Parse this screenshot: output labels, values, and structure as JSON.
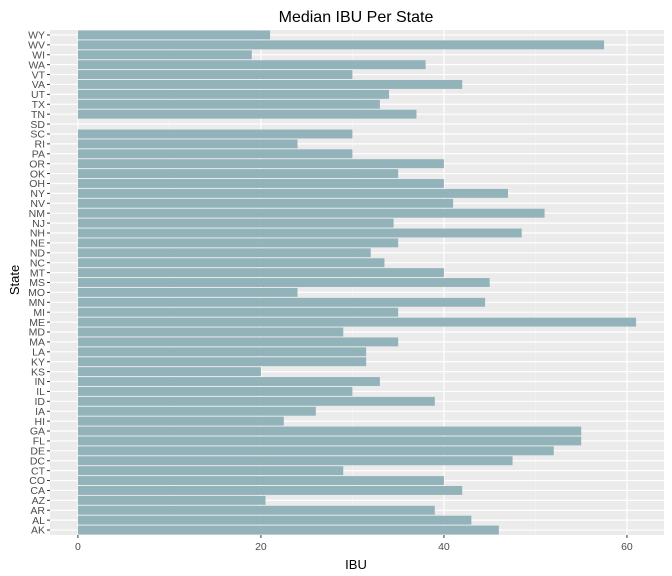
{
  "chart_data": {
    "type": "bar",
    "orientation": "horizontal",
    "title": "Median IBU Per State",
    "xlabel": "IBU",
    "ylabel": "State",
    "xlim": [
      -3.05,
      64.05
    ],
    "xticks": [
      0,
      20,
      40,
      60
    ],
    "grid": true,
    "legend": "none",
    "colors": {
      "bar": "#93b3ba",
      "panel": "#ebebeb",
      "grid_major": "#ffffff",
      "grid_minor": "#f5f5f5"
    },
    "categories": [
      "AK",
      "AL",
      "AR",
      "AZ",
      "CA",
      "CO",
      "CT",
      "DC",
      "DE",
      "FL",
      "GA",
      "HI",
      "IA",
      "ID",
      "IL",
      "IN",
      "KS",
      "KY",
      "LA",
      "MA",
      "MD",
      "ME",
      "MI",
      "MN",
      "MO",
      "MS",
      "MT",
      "NC",
      "ND",
      "NE",
      "NH",
      "NJ",
      "NM",
      "NV",
      "NY",
      "OH",
      "OK",
      "OR",
      "PA",
      "RI",
      "SC",
      "SD",
      "TN",
      "TX",
      "UT",
      "VA",
      "VT",
      "WA",
      "WI",
      "WV",
      "WY"
    ],
    "values": [
      46,
      43,
      39,
      20.5,
      42,
      40,
      29,
      47.5,
      52,
      55,
      55,
      22.5,
      26,
      39,
      30,
      33,
      20,
      31.5,
      31.5,
      35,
      29,
      61,
      35,
      44.5,
      24,
      45,
      40,
      33.5,
      32,
      35,
      48.5,
      34.5,
      51,
      41,
      47,
      40,
      35,
      40,
      30,
      24,
      30,
      0,
      37,
      33,
      34,
      42,
      30,
      38,
      19,
      57.5,
      21
    ]
  }
}
